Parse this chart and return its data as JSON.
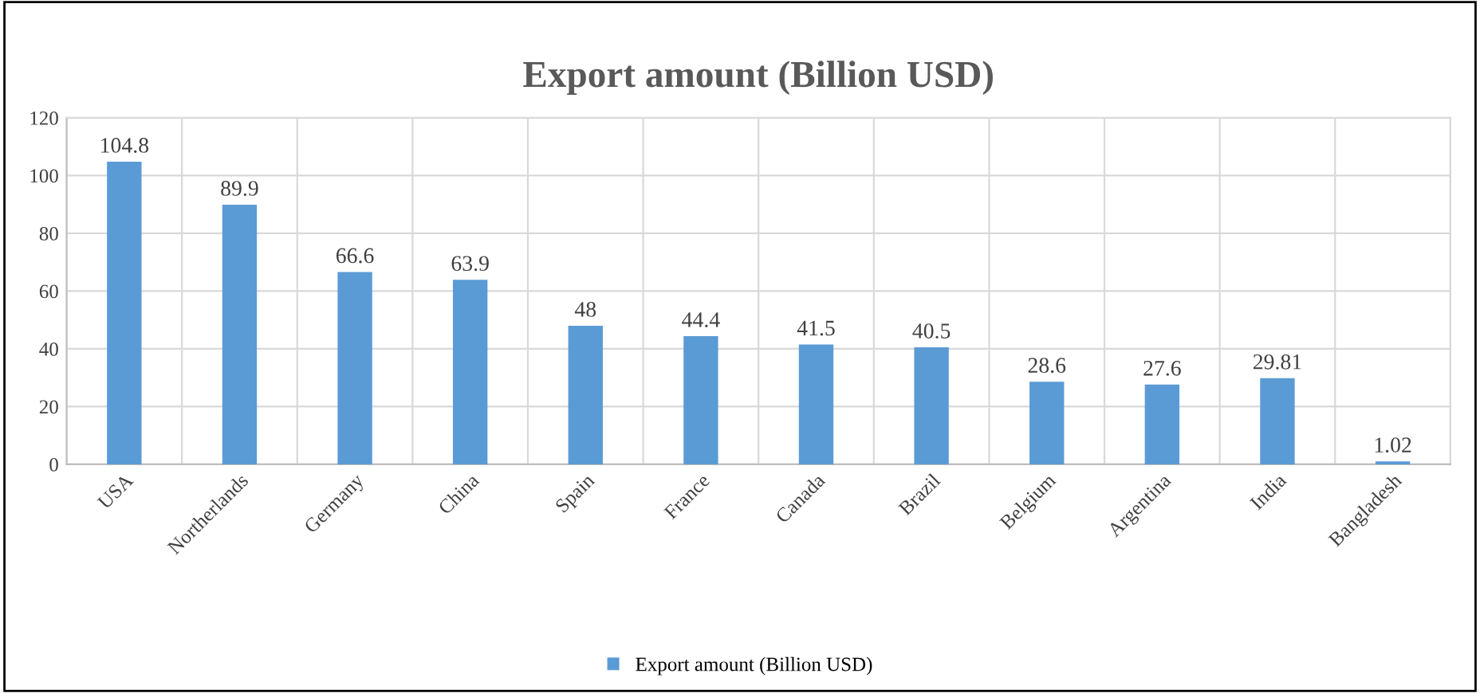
{
  "chart_data": {
    "type": "bar",
    "title": "Export amount (Billion USD)",
    "categories": [
      "USA",
      "Northerlands",
      "Germany",
      "China",
      "Spain",
      "France",
      "Canada",
      "Brazil",
      "Belgium",
      "Argentina",
      "India",
      "Bangladesh"
    ],
    "series": [
      {
        "name": "Export amount (Billion USD)",
        "color": "#5b9bd5",
        "values": [
          104.8,
          89.9,
          66.6,
          63.9,
          48,
          44.4,
          41.5,
          40.5,
          28.6,
          27.6,
          29.81,
          1.02
        ]
      }
    ],
    "ylim": [
      0,
      120
    ],
    "yticks": [
      0,
      20,
      40,
      60,
      80,
      100,
      120
    ],
    "grid": true,
    "legend": "bottom",
    "data_labels": true
  }
}
